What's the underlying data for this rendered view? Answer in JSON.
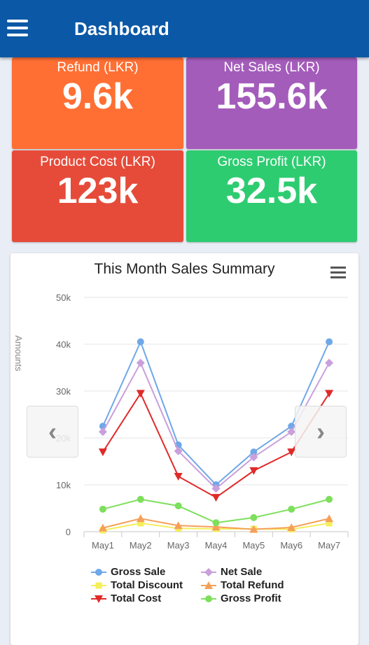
{
  "appbar": {
    "title": "Dashboard",
    "menu_icon": "hamburger-icon"
  },
  "tiles": [
    {
      "label": "Refund (LKR)",
      "value": "9.6k",
      "color": "#ff6f33"
    },
    {
      "label": "Net Sales (LKR)",
      "value": "155.6k",
      "color": "#a45cbb"
    },
    {
      "label": "Product Cost (LKR)",
      "value": "123k",
      "color": "#e64b3a"
    },
    {
      "label": "Gross Profit (LKR)",
      "value": "32.5k",
      "color": "#2ecc71"
    }
  ],
  "chart_data": {
    "type": "line",
    "title": "This Month Sales Summary",
    "ylabel": "Amounts",
    "xlabel": "",
    "categories": [
      "May1",
      "May2",
      "May3",
      "May4",
      "May5",
      "May6",
      "May7"
    ],
    "ylim": [
      0,
      50000
    ],
    "yticks": [
      0,
      10000,
      20000,
      30000,
      40000,
      50000
    ],
    "ytick_labels": [
      "0",
      "10k",
      "20k",
      "30k",
      "40k",
      "50k"
    ],
    "grid": true,
    "legend_position": "bottom",
    "series": [
      {
        "name": "Gross Sale",
        "color": "#6fa8e8",
        "marker": "circle",
        "values": [
          22500,
          40500,
          18500,
          10000,
          17000,
          22500,
          40500
        ]
      },
      {
        "name": "Net Sale",
        "color": "#c9a0dc",
        "marker": "diamond",
        "values": [
          21300,
          36000,
          17200,
          9200,
          15900,
          21300,
          36000
        ]
      },
      {
        "name": "Total Discount",
        "color": "#f4ee5a",
        "marker": "square",
        "values": [
          300,
          1800,
          700,
          600,
          600,
          500,
          1800
        ]
      },
      {
        "name": "Total Refund",
        "color": "#f5a05a",
        "marker": "triangle",
        "values": [
          800,
          2800,
          1300,
          1000,
          500,
          900,
          2800
        ]
      },
      {
        "name": "Total Cost",
        "color": "#e02a2a",
        "marker": "triangle-down",
        "values": [
          17000,
          29500,
          11800,
          7300,
          13000,
          17000,
          29500
        ]
      },
      {
        "name": "Gross Profit",
        "color": "#7edf5c",
        "marker": "circle",
        "values": [
          4800,
          6900,
          5500,
          1900,
          3000,
          4800,
          6900
        ]
      }
    ]
  },
  "nav": {
    "prev_glyph": "‹",
    "next_glyph": "›"
  },
  "chart_menu_icon": "chart-context-menu-icon"
}
